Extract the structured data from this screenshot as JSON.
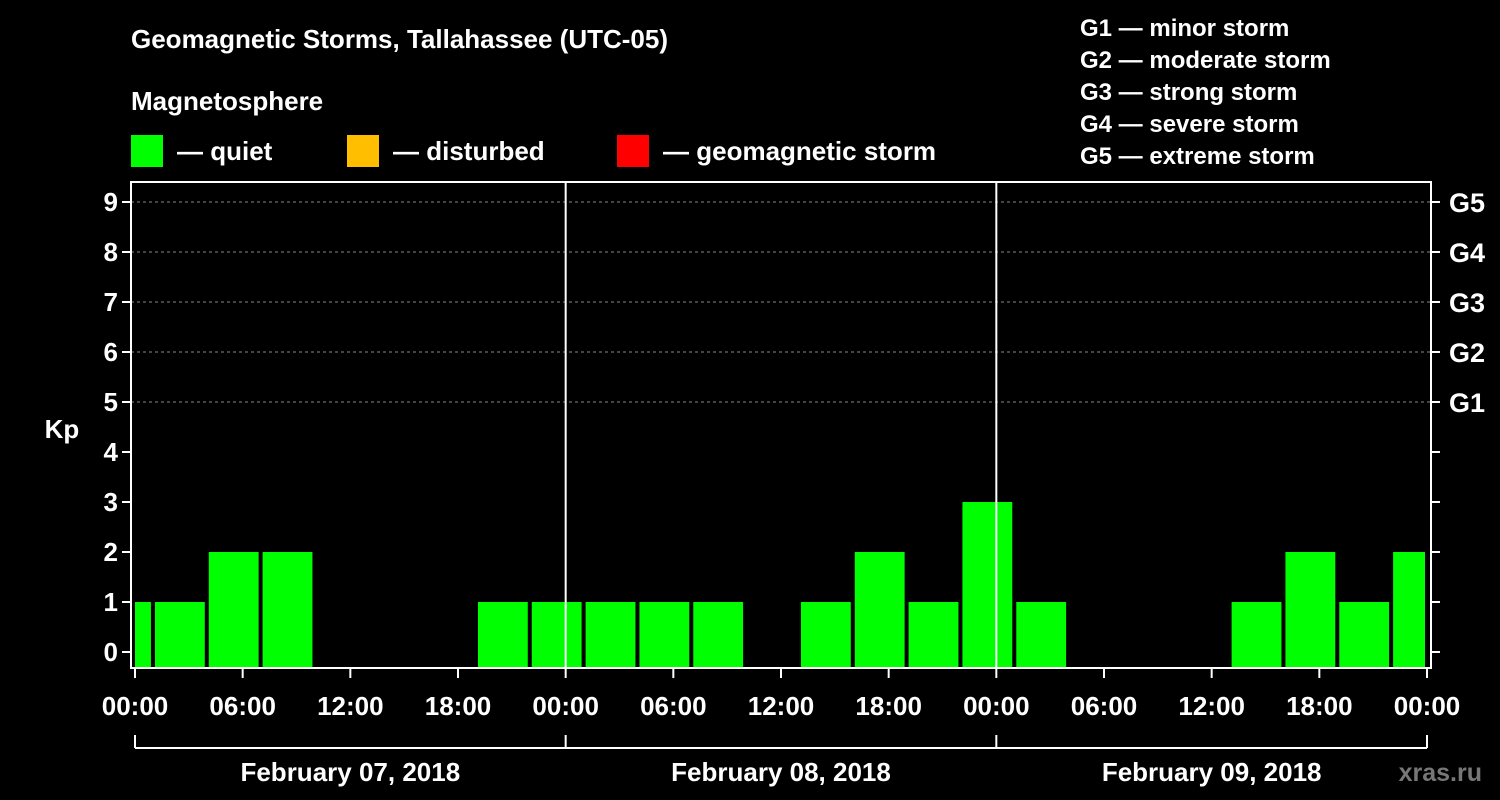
{
  "chart_data": {
    "type": "bar",
    "title": "Geomagnetic Storms, Tallahassee (UTC-05)",
    "subtitle": "Magnetosphere",
    "ylabel": "Kp",
    "ylim": [
      0,
      9
    ],
    "yticks": [
      "0",
      "1",
      "2",
      "3",
      "4",
      "5",
      "6",
      "7",
      "8",
      "9"
    ],
    "g_scale_ticks": [
      {
        "kp": 5,
        "label": "G1"
      },
      {
        "kp": 6,
        "label": "G2"
      },
      {
        "kp": 7,
        "label": "G3"
      },
      {
        "kp": 8,
        "label": "G4"
      },
      {
        "kp": 9,
        "label": "G5"
      }
    ],
    "x_tick_labels": [
      "00:00",
      "06:00",
      "12:00",
      "18:00",
      "00:00",
      "06:00",
      "12:00",
      "18:00",
      "00:00",
      "06:00",
      "12:00",
      "18:00",
      "00:00"
    ],
    "x_tick_hours": [
      0,
      6,
      12,
      18,
      24,
      30,
      36,
      42,
      48,
      54,
      60,
      66,
      72
    ],
    "days": [
      "February 07, 2018",
      "February 08, 2018",
      "February 09, 2018"
    ],
    "legend": [
      {
        "label": "— quiet",
        "color": "#00ff00"
      },
      {
        "label": "— disturbed",
        "color": "#ffbf00"
      },
      {
        "label": "— geomagnetic storm",
        "color": "#ff0000"
      }
    ],
    "storm_scale": [
      "G1 — minor storm",
      "G2 — moderate storm",
      "G3 — strong storm",
      "G4 — severe storm",
      "G5 — extreme storm"
    ],
    "bars": [
      {
        "start_hour": 0,
        "end_hour": 1,
        "kp": 1
      },
      {
        "start_hour": 1,
        "end_hour": 4,
        "kp": 1
      },
      {
        "start_hour": 4,
        "end_hour": 7,
        "kp": 2
      },
      {
        "start_hour": 7,
        "end_hour": 10,
        "kp": 2
      },
      {
        "start_hour": 10,
        "end_hour": 13,
        "kp": 0
      },
      {
        "start_hour": 13,
        "end_hour": 16,
        "kp": 0
      },
      {
        "start_hour": 16,
        "end_hour": 19,
        "kp": 0
      },
      {
        "start_hour": 19,
        "end_hour": 22,
        "kp": 1
      },
      {
        "start_hour": 22,
        "end_hour": 25,
        "kp": 1
      },
      {
        "start_hour": 25,
        "end_hour": 28,
        "kp": 1
      },
      {
        "start_hour": 28,
        "end_hour": 31,
        "kp": 1
      },
      {
        "start_hour": 31,
        "end_hour": 34,
        "kp": 1
      },
      {
        "start_hour": 34,
        "end_hour": 37,
        "kp": 0
      },
      {
        "start_hour": 37,
        "end_hour": 40,
        "kp": 1
      },
      {
        "start_hour": 40,
        "end_hour": 43,
        "kp": 2
      },
      {
        "start_hour": 43,
        "end_hour": 46,
        "kp": 1
      },
      {
        "start_hour": 46,
        "end_hour": 49,
        "kp": 3
      },
      {
        "start_hour": 49,
        "end_hour": 52,
        "kp": 1
      },
      {
        "start_hour": 52,
        "end_hour": 55,
        "kp": 0
      },
      {
        "start_hour": 55,
        "end_hour": 58,
        "kp": 0
      },
      {
        "start_hour": 58,
        "end_hour": 61,
        "kp": 0
      },
      {
        "start_hour": 61,
        "end_hour": 64,
        "kp": 1
      },
      {
        "start_hour": 64,
        "end_hour": 67,
        "kp": 2
      },
      {
        "start_hour": 67,
        "end_hour": 70,
        "kp": 1
      },
      {
        "start_hour": 70,
        "end_hour": 72,
        "kp": 2
      }
    ],
    "xlim_hours": [
      0,
      72
    ]
  },
  "watermark": "xras.ru"
}
